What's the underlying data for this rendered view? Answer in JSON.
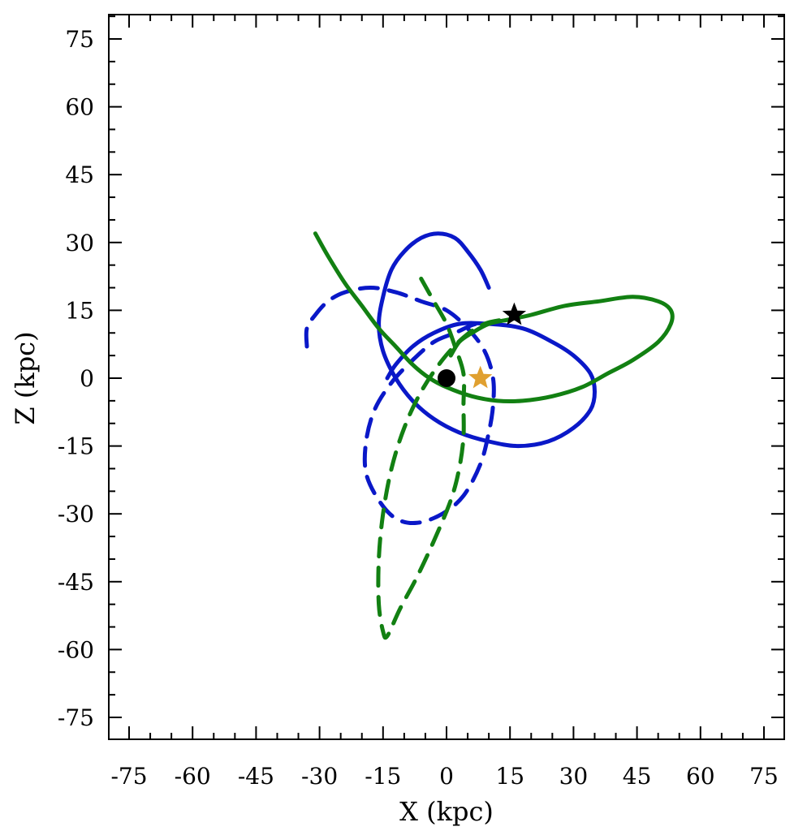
{
  "chart_data": {
    "type": "line",
    "xlabel": "X (kpc)",
    "ylabel": "Z (kpc)",
    "xlim": [
      -80,
      80
    ],
    "ylim": [
      -80,
      80
    ],
    "xticks": [
      -75,
      -60,
      -45,
      -30,
      -15,
      0,
      15,
      30,
      45,
      60,
      75
    ],
    "yticks": [
      -75,
      -60,
      -45,
      -30,
      -15,
      0,
      15,
      30,
      45,
      60,
      75
    ],
    "grid": false,
    "legend": "none",
    "series": [
      {
        "color": "#0a18c8",
        "dash": "solid",
        "points": [
          [
            10,
            20
          ],
          [
            8,
            24
          ],
          [
            5,
            28
          ],
          [
            2,
            31
          ],
          [
            -2,
            32
          ],
          [
            -6,
            31
          ],
          [
            -10,
            28
          ],
          [
            -13,
            24
          ],
          [
            -15,
            18
          ],
          [
            -16,
            12
          ],
          [
            -15,
            6
          ],
          [
            -12,
            0
          ],
          [
            -8,
            -5
          ],
          [
            -3,
            -9
          ],
          [
            3,
            -12
          ],
          [
            10,
            -14
          ],
          [
            17,
            -15
          ],
          [
            24,
            -14
          ],
          [
            30,
            -11
          ],
          [
            34,
            -7
          ],
          [
            35,
            -3
          ],
          [
            34,
            1
          ],
          [
            30,
            5
          ],
          [
            25,
            8
          ],
          [
            18,
            11
          ],
          [
            10,
            12
          ],
          [
            3,
            12
          ],
          [
            -3,
            10
          ],
          [
            -8,
            7
          ],
          [
            -12,
            3
          ],
          [
            -14,
            0
          ]
        ]
      },
      {
        "color": "#0a18c8",
        "dash": "dashed",
        "points": [
          [
            -33,
            7
          ],
          [
            -33,
            11
          ],
          [
            -31,
            14
          ],
          [
            -28,
            17
          ],
          [
            -24,
            19
          ],
          [
            -18,
            20
          ],
          [
            -12,
            19
          ],
          [
            -6,
            17
          ],
          [
            0,
            15
          ],
          [
            5,
            11
          ],
          [
            9,
            6
          ],
          [
            11,
            0
          ],
          [
            11,
            -6
          ],
          [
            10,
            -12
          ],
          [
            8,
            -19
          ],
          [
            4,
            -26
          ],
          [
            -1,
            -30
          ],
          [
            -7,
            -32
          ],
          [
            -12,
            -31
          ],
          [
            -16,
            -27
          ],
          [
            -19,
            -21
          ],
          [
            -19,
            -14
          ],
          [
            -17,
            -7
          ],
          [
            -13,
            -1
          ],
          [
            -8,
            4
          ],
          [
            -3,
            8
          ],
          [
            2,
            10
          ],
          [
            7,
            12
          ],
          [
            12,
            12
          ]
        ]
      },
      {
        "color": "#128012",
        "dash": "solid",
        "points": [
          [
            -31,
            32
          ],
          [
            -28,
            27
          ],
          [
            -24,
            21
          ],
          [
            -20,
            16
          ],
          [
            -16,
            11
          ],
          [
            -12,
            7
          ],
          [
            -8,
            3
          ],
          [
            -4,
            0
          ],
          [
            0,
            -2
          ],
          [
            6,
            -4
          ],
          [
            12,
            -5
          ],
          [
            18,
            -5
          ],
          [
            25,
            -4
          ],
          [
            32,
            -2
          ],
          [
            38,
            1
          ],
          [
            44,
            4
          ],
          [
            50,
            8
          ],
          [
            53,
            12
          ],
          [
            53,
            15
          ],
          [
            50,
            17
          ],
          [
            44,
            18
          ],
          [
            36,
            17
          ],
          [
            28,
            16
          ],
          [
            20,
            14
          ],
          [
            15,
            13
          ],
          [
            10,
            12
          ],
          [
            6,
            10
          ],
          [
            3,
            8
          ],
          [
            1,
            5
          ]
        ]
      },
      {
        "color": "#128012",
        "dash": "dashed",
        "points": [
          [
            -6,
            22
          ],
          [
            -3,
            17
          ],
          [
            0,
            12
          ],
          [
            2,
            7
          ],
          [
            4,
            1
          ],
          [
            4,
            -6
          ],
          [
            4,
            -13
          ],
          [
            3,
            -20
          ],
          [
            1,
            -27
          ],
          [
            -3,
            -36
          ],
          [
            -7,
            -44
          ],
          [
            -11,
            -51
          ],
          [
            -14,
            -57
          ],
          [
            -15,
            -56
          ],
          [
            -16,
            -50
          ],
          [
            -16,
            -40
          ],
          [
            -15,
            -30
          ],
          [
            -13,
            -20
          ],
          [
            -10,
            -11
          ],
          [
            -6,
            -3
          ],
          [
            -1,
            4
          ],
          [
            4,
            9
          ],
          [
            9,
            12
          ],
          [
            14,
            13
          ]
        ]
      }
    ],
    "markers": [
      {
        "symbol": "circle",
        "color": "#000000",
        "x": 0,
        "y": 0
      },
      {
        "symbol": "star",
        "color": "#e0a030",
        "x": 8,
        "y": 0
      },
      {
        "symbol": "star",
        "color": "#000000",
        "x": 16,
        "y": 14
      }
    ]
  }
}
